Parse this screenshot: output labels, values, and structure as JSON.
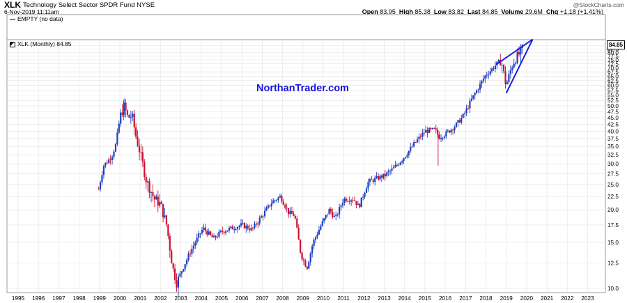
{
  "header": {
    "ticker": "XLK",
    "fund_name": "Technology Select Sector SPDR Fund",
    "exchange": "NYSE",
    "datetime": "6-Nov-2019 11:11am",
    "credit": "@StockCharts.com",
    "quote": {
      "open_label": "Open",
      "open": "83.95",
      "high_label": "High",
      "high": "85.38",
      "low_label": "Low",
      "low": "83.82",
      "last_label": "Last",
      "last": "84.85",
      "volume_label": "Volume",
      "volume": "29.6M",
      "chg_label": "Chg",
      "chg": "+1.18 (+1.41%)"
    }
  },
  "upper_panel": {
    "label": "EMPTY (no data)"
  },
  "main_panel": {
    "label": "XLK (Monthly) 84.85",
    "watermark": "NorthanTrader.com",
    "last_price_badge": "84.85"
  },
  "colors": {
    "up": "#1f3fbf",
    "down": "#cc1133",
    "trendline": "#1a1ae6",
    "watermark": "#1515dd"
  },
  "chart_data": {
    "type": "candlestick",
    "title": "XLK Technology Select Sector SPDR Fund NYSE",
    "period": "Monthly",
    "yaxis": {
      "side": "right",
      "min": 10.0,
      "max": 85.0,
      "step": 2.5,
      "scale": "log"
    },
    "xaxis": {
      "ticks": [
        "1995",
        "1996",
        "1997",
        "1998",
        "1999",
        "2000",
        "2001",
        "2002",
        "2003",
        "2004",
        "2005",
        "2006",
        "2007",
        "2008",
        "2009",
        "2010",
        "2011",
        "2012",
        "2013",
        "2014",
        "2015",
        "2016",
        "2017",
        "2018",
        "2019",
        "2020",
        "2021",
        "2022",
        "2023"
      ]
    },
    "grid": true,
    "price_path": [
      [
        1998.96,
        24.0
      ],
      [
        1999.2,
        29.5
      ],
      [
        1999.6,
        32.0
      ],
      [
        1999.85,
        36.5
      ],
      [
        2000.0,
        45.0
      ],
      [
        2000.2,
        50.0
      ],
      [
        2000.4,
        45.0
      ],
      [
        2000.6,
        46.0
      ],
      [
        2000.8,
        38.0
      ],
      [
        2001.0,
        33.0
      ],
      [
        2001.3,
        26.0
      ],
      [
        2001.7,
        22.0
      ],
      [
        2002.0,
        21.0
      ],
      [
        2002.3,
        17.5
      ],
      [
        2002.6,
        12.0
      ],
      [
        2002.8,
        10.5
      ],
      [
        2003.0,
        11.5
      ],
      [
        2003.5,
        14.0
      ],
      [
        2003.9,
        16.0
      ],
      [
        2004.1,
        17.0
      ],
      [
        2004.6,
        15.5
      ],
      [
        2005.0,
        16.5
      ],
      [
        2005.5,
        17.0
      ],
      [
        2006.0,
        17.5
      ],
      [
        2006.5,
        16.8
      ],
      [
        2007.0,
        19.0
      ],
      [
        2007.5,
        21.5
      ],
      [
        2007.9,
        22.5
      ],
      [
        2008.3,
        19.5
      ],
      [
        2008.6,
        19.0
      ],
      [
        2008.9,
        13.5
      ],
      [
        2009.2,
        12.0
      ],
      [
        2009.5,
        15.0
      ],
      [
        2009.9,
        17.5
      ],
      [
        2010.3,
        20.0
      ],
      [
        2010.6,
        18.5
      ],
      [
        2011.0,
        22.0
      ],
      [
        2011.5,
        22.0
      ],
      [
        2011.75,
        20.5
      ],
      [
        2012.2,
        25.5
      ],
      [
        2012.7,
        26.5
      ],
      [
        2013.0,
        27.0
      ],
      [
        2013.5,
        29.0
      ],
      [
        2014.0,
        32.0
      ],
      [
        2014.5,
        36.0
      ],
      [
        2015.0,
        40.0
      ],
      [
        2015.5,
        40.5
      ],
      [
        2015.7,
        38.0
      ],
      [
        2016.0,
        39.0
      ],
      [
        2016.5,
        42.0
      ],
      [
        2016.9,
        46.0
      ],
      [
        2017.3,
        53.0
      ],
      [
        2017.7,
        60.0
      ],
      [
        2018.0,
        66.0
      ],
      [
        2018.2,
        68.0
      ],
      [
        2018.5,
        72.0
      ],
      [
        2018.75,
        75.0
      ],
      [
        2018.95,
        62.0
      ],
      [
        2019.0,
        60.0
      ],
      [
        2019.3,
        72.0
      ],
      [
        2019.5,
        77.0
      ],
      [
        2019.7,
        80.0
      ],
      [
        2019.85,
        84.85
      ]
    ],
    "trendlines": [
      {
        "from": [
          2018.5,
          72.0
        ],
        "to": [
          2020.3,
          90.0
        ]
      },
      {
        "from": [
          2019.0,
          56.0
        ],
        "to": [
          2020.3,
          90.0
        ]
      }
    ]
  }
}
